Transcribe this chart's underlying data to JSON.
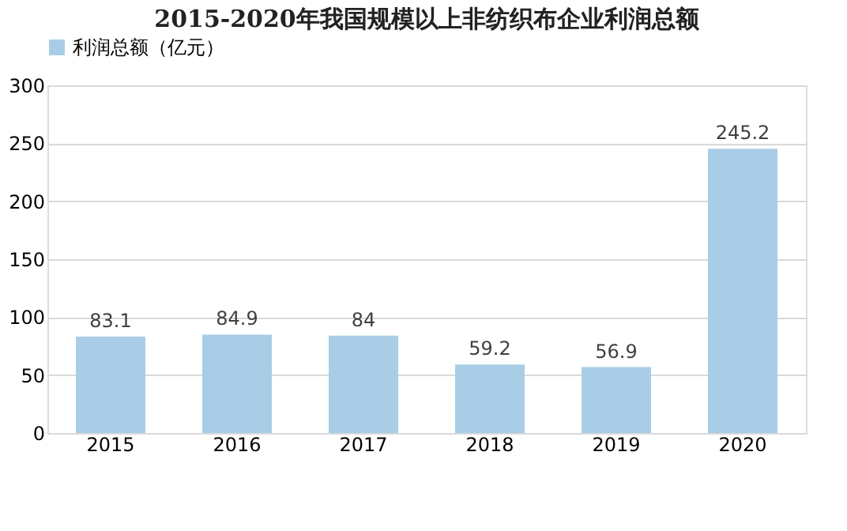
{
  "chart_data": {
    "type": "bar",
    "title": "2015-2020年我国规模以上非纺织布企业利润总额",
    "categories": [
      "2015",
      "2016",
      "2017",
      "2018",
      "2019",
      "2020"
    ],
    "series": [
      {
        "name": "利润总额（亿元）",
        "color": "#a9cde6",
        "values": [
          83.1,
          84.9,
          84,
          59.2,
          56.9,
          245.2
        ]
      }
    ],
    "ylim": [
      0,
      300
    ],
    "yticks": [
      0,
      50,
      100,
      150,
      200,
      250,
      300
    ],
    "grid": "y",
    "legend": "top",
    "data_labels": true
  }
}
